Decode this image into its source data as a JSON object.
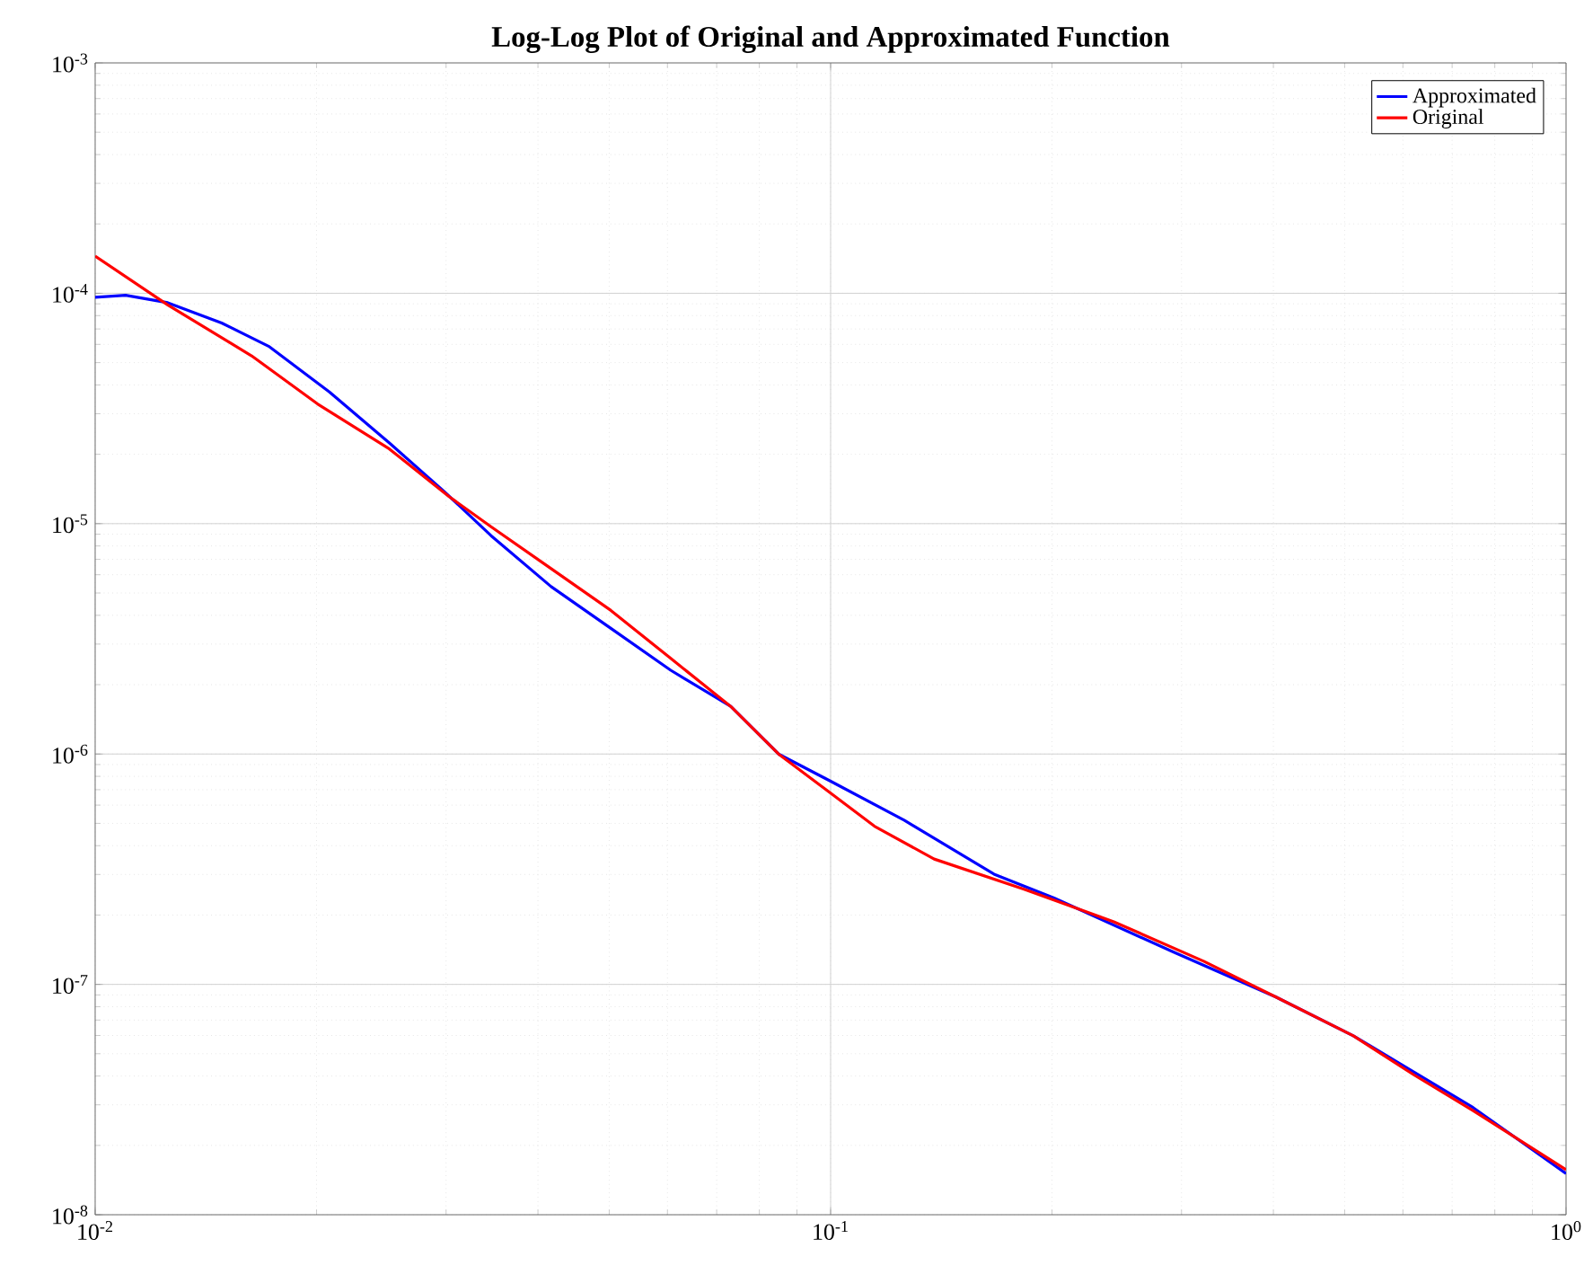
{
  "chart_data": {
    "type": "line",
    "title": "Log-Log Plot of Original and Approximated Function",
    "log": "xy",
    "grid": true,
    "legend": "top right",
    "line_style": "solid",
    "marker": "none",
    "xlim": [
      0.01,
      1
    ],
    "ylim": [
      1e-08,
      0.001
    ],
    "xticks": [
      {
        "value": 0.01,
        "label": "10$^{-2}$"
      },
      {
        "value": 0.1,
        "label": "10$^{-1}$"
      },
      {
        "value": 1,
        "label": "10$^{0}$"
      }
    ],
    "yticks": [
      {
        "value": 1e-08,
        "label": "10$^{-8}$"
      },
      {
        "value": 1e-07,
        "label": "10$^{-7}$"
      },
      {
        "value": 1e-06,
        "label": "10$^{-6}$"
      },
      {
        "value": 1e-05,
        "label": "10$^{-5}$"
      },
      {
        "value": 0.0001,
        "label": "10$^{-4}$"
      },
      {
        "value": 0.001,
        "label": "10$^{-3}$"
      }
    ],
    "series": [
      {
        "name": "Approximated",
        "color": "#0000ff",
        "x": [
          0.01,
          0.011,
          0.01255,
          0.01486,
          0.01726,
          0.02082,
          0.02512,
          0.02974,
          0.03454,
          0.04168,
          0.05026,
          0.06062,
          0.07314,
          0.08495,
          0.1,
          0.1259,
          0.1668,
          0.2013,
          0.2928,
          0.4027,
          0.5138,
          0.6201,
          0.7474,
          1.0
        ],
        "values": [
          9.6e-05,
          9.8e-05,
          9.1e-05,
          7.43e-05,
          5.86e-05,
          3.73e-05,
          2.24e-05,
          1.39e-05,
          8.87e-06,
          5.33e-06,
          3.51e-06,
          2.31e-06,
          1.61e-06,
          1e-06,
          7.62e-07,
          5.16e-07,
          3.01e-07,
          2.37e-07,
          1.38e-07,
          8.83e-08,
          5.98e-08,
          4.18e-08,
          2.92e-08,
          1.51e-08
        ]
      },
      {
        "name": "Original",
        "color": "#ff0000",
        "x": [
          0.01,
          0.01255,
          0.01632,
          0.02006,
          0.02512,
          0.03029,
          0.03454,
          0.04168,
          0.05026,
          0.06062,
          0.07314,
          0.08495,
          0.1,
          0.1147,
          0.1383,
          0.1833,
          0.2427,
          0.3216,
          0.4027,
          0.5138,
          0.6201,
          0.7474,
          1.0
        ],
        "values": [
          0.000145,
          8.9e-05,
          5.35e-05,
          3.31e-05,
          2.11e-05,
          1.31e-05,
          9.7e-06,
          6.38e-06,
          4.2e-06,
          2.6e-06,
          1.61e-06,
          1e-06,
          6.76e-07,
          4.86e-07,
          3.5e-07,
          2.59e-07,
          1.87e-07,
          1.26e-07,
          8.83e-08,
          5.98e-08,
          4.06e-08,
          2.83e-08,
          1.57e-08
        ]
      }
    ]
  }
}
